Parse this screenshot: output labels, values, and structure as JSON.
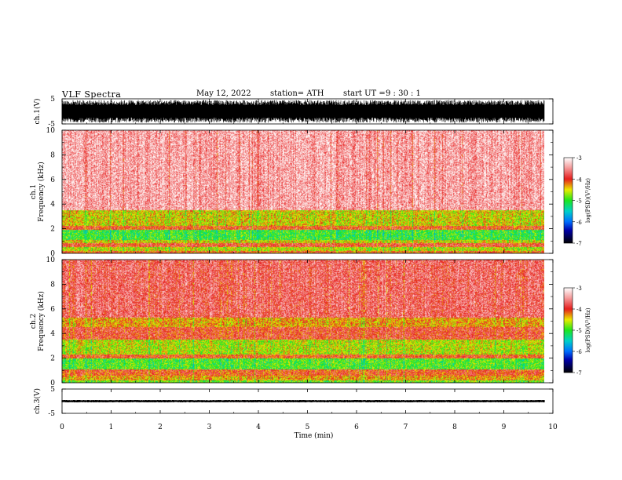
{
  "header": {
    "title": "VLF Spectra",
    "date": "May 12, 2022",
    "station": "station= ATH",
    "start_label": "start UT =",
    "start_time": "9 : 30 : 1"
  },
  "chart_data": [
    {
      "type": "line",
      "name": "ch1-waveform",
      "ylabel": "ch.1(V)",
      "ylim": [
        -5,
        5
      ],
      "yticks": [
        "5",
        "-5"
      ],
      "xlim": [
        0,
        10
      ],
      "data_extent_min": 9.83,
      "description_amplitude": [
        -4.5,
        4.5
      ]
    },
    {
      "type": "heatmap",
      "name": "ch1-spectrogram",
      "ylabel": "ch.1\nFrequency (kHz)",
      "ylim": [
        0,
        10
      ],
      "yticks": [
        "0",
        "2",
        "4",
        "6",
        "8",
        "10"
      ],
      "xlim": [
        0,
        10
      ],
      "data_extent_min": 9.83,
      "bands": [
        {
          "f": [
            0,
            0.2
          ],
          "level": -4.1
        },
        {
          "f": [
            0.2,
            0.5
          ],
          "level": -4.6
        },
        {
          "f": [
            0.5,
            0.8
          ],
          "level": -3.9
        },
        {
          "f": [
            0.8,
            1.1
          ],
          "level": -4.5
        },
        {
          "f": [
            1.1,
            1.9
          ],
          "level": -5.0
        },
        {
          "f": [
            1.9,
            2.2
          ],
          "level": -4.0
        },
        {
          "f": [
            2.2,
            3.5
          ],
          "level": -4.5
        },
        {
          "f": [
            3.5,
            10
          ],
          "level": -3.4
        }
      ]
    },
    {
      "type": "heatmap",
      "name": "ch2-spectrogram",
      "ylabel": "ch.2\nFrequency (kHz)",
      "ylim": [
        0,
        10
      ],
      "yticks": [
        "0",
        "2",
        "4",
        "6",
        "8",
        "10"
      ],
      "xlim": [
        0,
        10
      ],
      "data_extent_min": 9.83,
      "bands": [
        {
          "f": [
            0,
            0.2
          ],
          "level": -4.8
        },
        {
          "f": [
            0.2,
            0.6
          ],
          "level": -4.3
        },
        {
          "f": [
            0.6,
            1.1
          ],
          "level": -4.0
        },
        {
          "f": [
            1.1,
            2.0
          ],
          "level": -4.9
        },
        {
          "f": [
            2.0,
            2.3
          ],
          "level": -4.0
        },
        {
          "f": [
            2.3,
            3.5
          ],
          "level": -4.6
        },
        {
          "f": [
            3.5,
            4.5
          ],
          "level": -3.9
        },
        {
          "f": [
            4.5,
            5.3
          ],
          "level": -4.3
        },
        {
          "f": [
            5.3,
            10
          ],
          "level": -3.7
        }
      ]
    },
    {
      "type": "line",
      "name": "ch3-waveform",
      "ylabel": "ch.3(V)",
      "ylim": [
        -5,
        5
      ],
      "yticks": [
        "5",
        "-5"
      ],
      "xlim": [
        0,
        10
      ],
      "data_extent_min": 9.83,
      "description_amplitude": [
        -0.5,
        0.5
      ]
    }
  ],
  "x_axis": {
    "label": "Time (min)",
    "ticks": [
      "0",
      "1",
      "2",
      "3",
      "4",
      "5",
      "6",
      "7",
      "8",
      "9",
      "10"
    ]
  },
  "colorbar": {
    "label": "log(PSD)(V²/Hz)",
    "ticks": [
      "-3",
      "-4",
      "-5",
      "-6",
      "-7"
    ],
    "range": [
      -7,
      -3
    ]
  }
}
